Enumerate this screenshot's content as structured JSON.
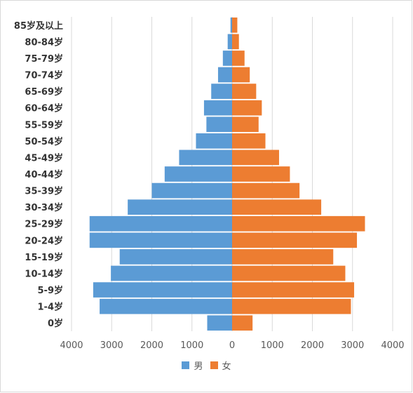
{
  "chart_data": {
    "type": "bar",
    "orientation": "horizontal",
    "layout": "population-pyramid",
    "categories": [
      "85岁及以上",
      "80-84岁",
      "75-79岁",
      "70-74岁",
      "65-69岁",
      "60-64岁",
      "55-59岁",
      "50-54岁",
      "45-49岁",
      "40-44岁",
      "35-39岁",
      "30-34岁",
      "25-29岁",
      "20-24岁",
      "15-19岁",
      "10-14岁",
      "5-9岁",
      "1-4岁",
      "0岁"
    ],
    "series": [
      {
        "name": "男",
        "color": "#5b9bd5",
        "side": "left",
        "values": [
          40,
          110,
          230,
          350,
          520,
          700,
          640,
          900,
          1320,
          1680,
          2000,
          2600,
          3550,
          3550,
          2800,
          3020,
          3460,
          3300,
          620
        ]
      },
      {
        "name": "女",
        "color": "#ed7d31",
        "side": "right",
        "values": [
          130,
          170,
          310,
          440,
          600,
          740,
          660,
          830,
          1170,
          1440,
          1680,
          2220,
          3310,
          3110,
          2520,
          2820,
          3040,
          2960,
          510
        ]
      }
    ],
    "xlim": [
      -4000,
      4000
    ],
    "xticks": [
      -4000,
      -3000,
      -2000,
      -1000,
      0,
      1000,
      2000,
      3000,
      4000
    ],
    "xtick_labels": [
      "4000",
      "3000",
      "2000",
      "1000",
      "0",
      "1000",
      "2000",
      "3000",
      "4000"
    ],
    "title": "",
    "xlabel": "",
    "ylabel": "",
    "grid": "vertical",
    "legend_position": "bottom"
  }
}
